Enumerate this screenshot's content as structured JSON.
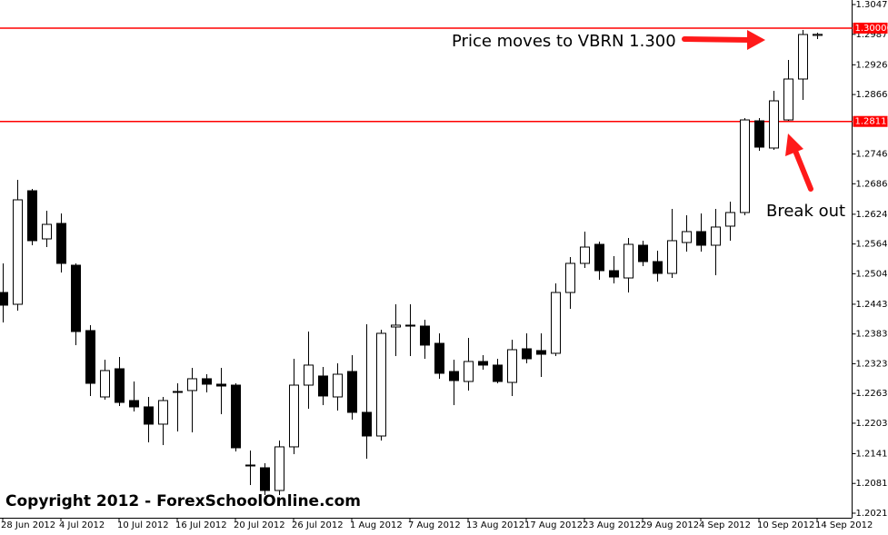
{
  "chart_data": {
    "type": "candlestick",
    "x": [
      "28 Jun 2012",
      null,
      null,
      null,
      "4 Jul 2012",
      null,
      null,
      null,
      "10 Jul 2012",
      null,
      null,
      null,
      "16 Jul 2012",
      null,
      null,
      null,
      "20 Jul 2012",
      null,
      null,
      null,
      "26 Jul 2012",
      null,
      null,
      null,
      "1 Aug 2012",
      null,
      null,
      null,
      "7 Aug 2012",
      null,
      null,
      null,
      "13 Aug 2012",
      null,
      null,
      null,
      "17 Aug 2012",
      null,
      null,
      null,
      "23 Aug 2012",
      null,
      null,
      null,
      "29 Aug 2012",
      null,
      null,
      null,
      "4 Sep 2012",
      null,
      null,
      null,
      "10 Sep 2012",
      null,
      null,
      null,
      "14 Sep 2012"
    ],
    "open": [
      1.24667,
      1.24429,
      1.26719,
      1.25748,
      1.2606,
      1.25217,
      1.23898,
      1.2256,
      1.23128,
      1.22487,
      1.22359,
      1.22011,
      1.22652,
      1.22689,
      1.22927,
      1.22817,
      1.22798,
      1.21186,
      1.21131,
      1.20673,
      1.21553,
      1.22798,
      1.22982,
      1.2256,
      1.23073,
      1.22249,
      1.21772,
      1.23971,
      1.24008,
      1.23989,
      1.23641,
      1.23073,
      1.22872,
      1.23275,
      1.23202,
      1.22853,
      1.23531,
      1.23495,
      1.2344,
      1.24667,
      1.25254,
      1.25638,
      1.25107,
      1.2496,
      1.2562,
      1.2529,
      1.25052,
      1.25675,
      1.25895,
      1.2562,
      1.26005,
      1.2628,
      1.2813,
      1.27581,
      1.28148,
      1.28973,
      1.29853
    ],
    "high": [
      1.25254,
      1.26939,
      1.26756,
      1.26316,
      1.26261,
      1.25254,
      1.24008,
      1.23311,
      1.23366,
      1.22872,
      1.2256,
      1.2256,
      1.22835,
      1.23147,
      1.23018,
      1.23147,
      1.22835,
      1.21479,
      1.21223,
      1.21681,
      1.2333,
      1.23879,
      1.23165,
      1.23238,
      1.23403,
      1.24026,
      1.23916,
      1.24429,
      1.24429,
      1.24118,
      1.23843,
      1.23311,
      1.23751,
      1.23403,
      1.2333,
      1.23715,
      1.23843,
      1.23843,
      1.24851,
      1.25382,
      1.25895,
      1.25693,
      1.254,
      1.25767,
      1.25712,
      1.2551,
      1.26353,
      1.26225,
      1.26261,
      1.26353,
      1.265,
      1.28185,
      1.28185,
      1.28735,
      1.29358,
      1.29962,
      1.29907
    ],
    "low": [
      1.24063,
      1.24301,
      1.2562,
      1.25583,
      1.2507,
      1.23605,
      1.22579,
      1.22505,
      1.22377,
      1.22267,
      1.21644,
      1.21589,
      1.21864,
      1.21846,
      1.22652,
      1.22212,
      1.21461,
      1.20783,
      1.20582,
      1.20582,
      1.21406,
      1.22322,
      1.22395,
      1.22285,
      1.22102,
      1.21314,
      1.21681,
      1.23385,
      1.23385,
      1.2333,
      1.22927,
      1.22395,
      1.22689,
      1.2311,
      1.22835,
      1.22579,
      1.23238,
      1.22963,
      1.23385,
      1.24338,
      1.25162,
      1.24924,
      1.24851,
      1.24667,
      1.25199,
      1.24887,
      1.2496,
      1.25492,
      1.25492,
      1.25015,
      1.25712,
      1.26225,
      1.27526,
      1.27544,
      1.2813,
      1.28552,
      1.29779
    ],
    "close": [
      1.24411,
      1.26536,
      1.25712,
      1.26041,
      1.25254,
      1.23879,
      1.22835,
      1.23092,
      1.2245,
      1.22359,
      1.22011,
      1.22487,
      1.2267,
      1.22927,
      1.22817,
      1.2278,
      1.21534,
      1.21168,
      1.20673,
      1.21553,
      1.22798,
      1.23202,
      1.22579,
      1.23018,
      1.22249,
      1.21772,
      1.23843,
      1.24008,
      1.23989,
      1.23605,
      1.23037,
      1.2289,
      1.23275,
      1.23202,
      1.22872,
      1.23513,
      1.2333,
      1.23421,
      1.24667,
      1.25254,
      1.25583,
      1.25107,
      1.24979,
      1.25638,
      1.2529,
      1.25052,
      1.25712,
      1.25895,
      1.2562,
      1.25987,
      1.2628,
      1.28148,
      1.27599,
      1.28533,
      1.28973,
      1.29871,
      1.29874
    ],
    "up_color": "#ffffff",
    "down_color": "#000000",
    "ylim": [
      1.20123,
      1.30567
    ],
    "yticks": [
      1.30475,
      1.29874,
      {
        "value": 1.2926,
        "label": "1.29260"
      },
      {
        "value": 1.2866,
        "label": "1.28660"
      },
      {
        "value": 1.2746,
        "label": "1.27460"
      },
      {
        "value": 1.2686,
        "label": "1.26860"
      },
      1.26245,
      1.25645,
      1.25045,
      {
        "value": 1.2443,
        "label": "1.24430"
      },
      {
        "value": 1.2383,
        "label": "1.23830"
      },
      {
        "value": 1.2323,
        "label": "1.23230"
      },
      {
        "value": 1.2263,
        "label": "1.22630"
      },
      {
        "value": 1.2203,
        "label": "1.22030"
      },
      1.21415,
      1.20815,
      1.20215
    ],
    "hlines": [
      {
        "value": 1.3,
        "label": "1.30000",
        "color": "#ff0000"
      },
      {
        "value": 1.28117,
        "label": "1.28117",
        "color": "#ff0000"
      }
    ],
    "annotations": [
      "Price moves to VBRN 1.300",
      "Break out"
    ],
    "footer": "Copyright 2012 - ForexSchoolOnline.com",
    "grid": false
  }
}
